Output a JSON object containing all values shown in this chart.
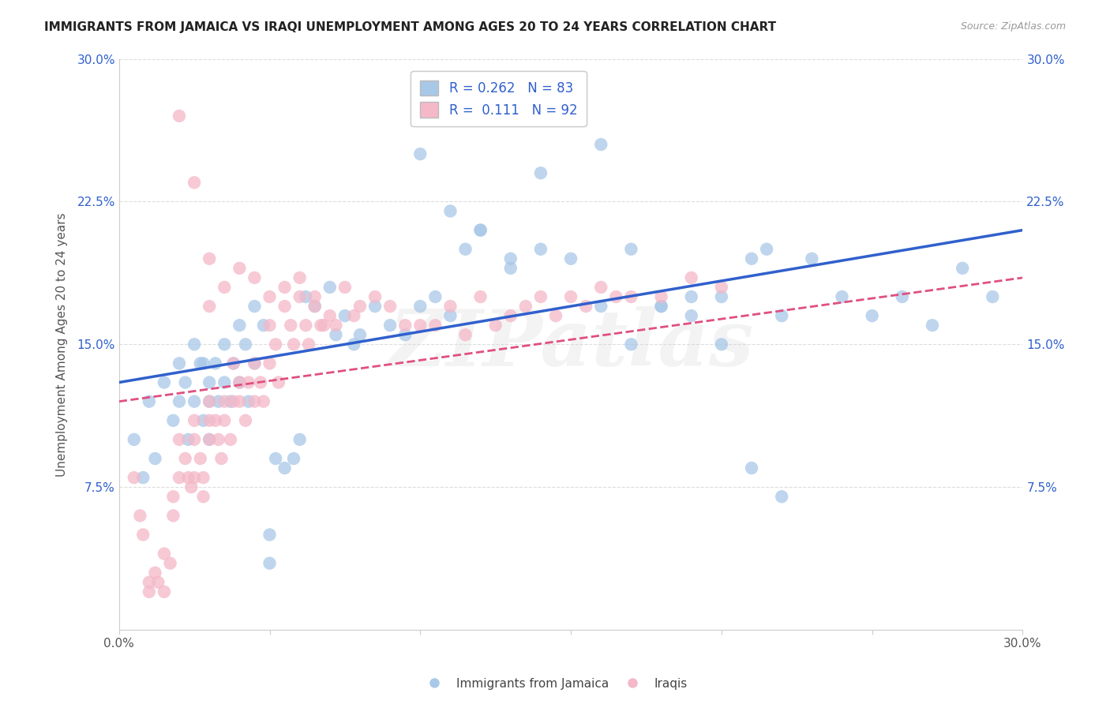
{
  "title": "IMMIGRANTS FROM JAMAICA VS IRAQI UNEMPLOYMENT AMONG AGES 20 TO 24 YEARS CORRELATION CHART",
  "source": "Source: ZipAtlas.com",
  "ylabel": "Unemployment Among Ages 20 to 24 years",
  "xlim": [
    0.0,
    0.3
  ],
  "ylim": [
    0.0,
    0.3
  ],
  "xticks": [
    0.0,
    0.05,
    0.1,
    0.15,
    0.2,
    0.25,
    0.3
  ],
  "xticklabels": [
    "0.0%",
    "",
    "",
    "",
    "",
    "",
    "30.0%"
  ],
  "yticks": [
    0.0,
    0.075,
    0.15,
    0.225,
    0.3
  ],
  "yticklabels": [
    "",
    "7.5%",
    "15.0%",
    "22.5%",
    "30.0%"
  ],
  "blue_R": 0.262,
  "blue_N": 83,
  "pink_R": 0.111,
  "pink_N": 92,
  "blue_color": "#A8C8E8",
  "pink_color": "#F4B8C8",
  "blue_line_color": "#3060CC",
  "pink_line_color": "#E05080",
  "legend_label_blue": "Immigrants from Jamaica",
  "legend_label_pink": "Iraqis",
  "watermark": "ZIPatlas",
  "blue_trend_x": [
    0.0,
    0.3
  ],
  "blue_trend_y": [
    0.13,
    0.21
  ],
  "pink_trend_x": [
    0.0,
    0.3
  ],
  "pink_trend_y": [
    0.12,
    0.185
  ],
  "blue_x": [
    0.005,
    0.008,
    0.01,
    0.012,
    0.015,
    0.018,
    0.02,
    0.02,
    0.022,
    0.023,
    0.025,
    0.025,
    0.027,
    0.028,
    0.028,
    0.03,
    0.03,
    0.03,
    0.032,
    0.033,
    0.035,
    0.035,
    0.037,
    0.038,
    0.04,
    0.04,
    0.042,
    0.043,
    0.045,
    0.045,
    0.048,
    0.05,
    0.05,
    0.052,
    0.055,
    0.058,
    0.06,
    0.062,
    0.065,
    0.07,
    0.072,
    0.075,
    0.078,
    0.08,
    0.085,
    0.09,
    0.095,
    0.1,
    0.105,
    0.11,
    0.115,
    0.12,
    0.13,
    0.14,
    0.15,
    0.16,
    0.17,
    0.18,
    0.19,
    0.2,
    0.21,
    0.215,
    0.22,
    0.23,
    0.24,
    0.25,
    0.26,
    0.27,
    0.28,
    0.29,
    0.1,
    0.11,
    0.12,
    0.13,
    0.14,
    0.15,
    0.16,
    0.17,
    0.18,
    0.19,
    0.2,
    0.21,
    0.22
  ],
  "blue_y": [
    0.1,
    0.08,
    0.12,
    0.09,
    0.13,
    0.11,
    0.14,
    0.12,
    0.13,
    0.1,
    0.15,
    0.12,
    0.14,
    0.11,
    0.14,
    0.13,
    0.12,
    0.1,
    0.14,
    0.12,
    0.15,
    0.13,
    0.12,
    0.14,
    0.16,
    0.13,
    0.15,
    0.12,
    0.17,
    0.14,
    0.16,
    0.05,
    0.035,
    0.09,
    0.085,
    0.09,
    0.1,
    0.175,
    0.17,
    0.18,
    0.155,
    0.165,
    0.15,
    0.155,
    0.17,
    0.16,
    0.155,
    0.17,
    0.175,
    0.165,
    0.2,
    0.21,
    0.19,
    0.2,
    0.195,
    0.17,
    0.2,
    0.17,
    0.165,
    0.175,
    0.195,
    0.2,
    0.165,
    0.195,
    0.175,
    0.165,
    0.175,
    0.16,
    0.19,
    0.175,
    0.25,
    0.22,
    0.21,
    0.195,
    0.24,
    0.275,
    0.255,
    0.15,
    0.17,
    0.175,
    0.15,
    0.085,
    0.07
  ],
  "pink_x": [
    0.005,
    0.007,
    0.008,
    0.01,
    0.01,
    0.012,
    0.013,
    0.015,
    0.015,
    0.017,
    0.018,
    0.018,
    0.02,
    0.02,
    0.022,
    0.023,
    0.024,
    0.025,
    0.025,
    0.025,
    0.027,
    0.028,
    0.028,
    0.03,
    0.03,
    0.03,
    0.032,
    0.033,
    0.034,
    0.035,
    0.035,
    0.037,
    0.038,
    0.038,
    0.04,
    0.04,
    0.042,
    0.043,
    0.045,
    0.045,
    0.047,
    0.048,
    0.05,
    0.05,
    0.052,
    0.053,
    0.055,
    0.057,
    0.058,
    0.06,
    0.062,
    0.063,
    0.065,
    0.067,
    0.068,
    0.07,
    0.072,
    0.075,
    0.078,
    0.08,
    0.085,
    0.09,
    0.095,
    0.1,
    0.105,
    0.11,
    0.115,
    0.12,
    0.125,
    0.13,
    0.135,
    0.14,
    0.145,
    0.15,
    0.155,
    0.16,
    0.165,
    0.17,
    0.18,
    0.19,
    0.2,
    0.02,
    0.025,
    0.03,
    0.03,
    0.035,
    0.04,
    0.045,
    0.05,
    0.055,
    0.06,
    0.065
  ],
  "pink_y": [
    0.08,
    0.06,
    0.05,
    0.02,
    0.025,
    0.03,
    0.025,
    0.02,
    0.04,
    0.035,
    0.07,
    0.06,
    0.1,
    0.08,
    0.09,
    0.08,
    0.075,
    0.11,
    0.1,
    0.08,
    0.09,
    0.07,
    0.08,
    0.11,
    0.12,
    0.1,
    0.11,
    0.1,
    0.09,
    0.12,
    0.11,
    0.1,
    0.14,
    0.12,
    0.13,
    0.12,
    0.11,
    0.13,
    0.14,
    0.12,
    0.13,
    0.12,
    0.16,
    0.14,
    0.15,
    0.13,
    0.17,
    0.16,
    0.15,
    0.175,
    0.16,
    0.15,
    0.17,
    0.16,
    0.16,
    0.165,
    0.16,
    0.18,
    0.165,
    0.17,
    0.175,
    0.17,
    0.16,
    0.16,
    0.16,
    0.17,
    0.155,
    0.175,
    0.16,
    0.165,
    0.17,
    0.175,
    0.165,
    0.175,
    0.17,
    0.18,
    0.175,
    0.175,
    0.175,
    0.185,
    0.18,
    0.27,
    0.235,
    0.195,
    0.17,
    0.18,
    0.19,
    0.185,
    0.175,
    0.18,
    0.185,
    0.175
  ],
  "title_fontsize": 11,
  "axis_label_fontsize": 11,
  "tick_fontsize": 11,
  "legend_fontsize": 12,
  "background_color": "#FFFFFF",
  "grid_color": "#DDDDDD"
}
